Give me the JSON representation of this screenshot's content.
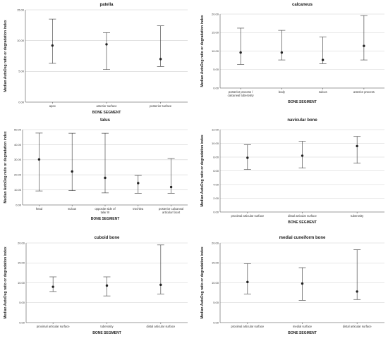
{
  "chart_data": [
    {
      "type": "errorbar",
      "title": "patella",
      "xlabel": "BONE SEGMENT",
      "ylabel": "Median AutoDeg ratio or degradation index",
      "ylim": [
        0,
        15
      ],
      "yticks": [
        "0.00",
        "5.00",
        "10.00",
        "15.00"
      ],
      "ytick_values": [
        0,
        5,
        10,
        15
      ],
      "grid": true,
      "categories": [
        "apex",
        "anterior surface",
        "posterior surface"
      ],
      "median": [
        9.2,
        9.4,
        7.0
      ],
      "lower": [
        6.3,
        5.3,
        5.8
      ],
      "upper": [
        13.5,
        11.3,
        12.4
      ]
    },
    {
      "type": "errorbar",
      "title": "calcaneus",
      "xlabel": "BONE SEGMENT",
      "ylabel": "Median AutoDeg ratio or degradation index",
      "ylim": [
        0,
        20
      ],
      "yticks": [
        "0.00",
        "5.00",
        "10.00",
        "15.00",
        "20.00"
      ],
      "ytick_values": [
        0,
        5,
        10,
        15,
        20
      ],
      "grid": true,
      "categories": [
        "posterior process / calcaneal tuberosity",
        "body",
        "sulcus",
        "anterior process"
      ],
      "median": [
        9.6,
        9.6,
        7.6,
        11.4
      ],
      "lower": [
        6.4,
        7.6,
        6.6,
        7.6
      ],
      "upper": [
        16.2,
        15.6,
        13.8,
        19.6
      ]
    },
    {
      "type": "errorbar",
      "title": "talus",
      "xlabel": "BONE SEGMENT",
      "ylabel": "Median AutoDeg ratio or degradation index",
      "ylim": [
        0,
        50
      ],
      "yticks": [
        "0.00",
        "10.00",
        "20.00",
        "30.00",
        "40.00",
        "50.00"
      ],
      "ytick_values": [
        0,
        10,
        20,
        30,
        40,
        50
      ],
      "grid": true,
      "categories": [
        "head",
        "sulcus",
        "opposite side of talar III",
        "trochlea",
        "posterior calcaneal articular facet"
      ],
      "median": [
        30.2,
        22.2,
        18.0,
        14.5,
        11.9
      ],
      "lower": [
        9.3,
        9.5,
        8.0,
        7.8,
        7.8
      ],
      "upper": [
        47.7,
        47.6,
        47.6,
        19.6,
        30.8
      ]
    },
    {
      "type": "errorbar",
      "title": "navicular bone",
      "xlabel": "BONE SEGMENT",
      "ylabel": "Median AutoDeg ratio or degradation index",
      "ylim": [
        0,
        12
      ],
      "yticks": [
        "0.00",
        "2.00",
        "4.00",
        "6.00",
        "8.00",
        "10.00",
        "12.00"
      ],
      "ytick_values": [
        0,
        2,
        4,
        6,
        8,
        10,
        12
      ],
      "grid": true,
      "categories": [
        "proximal articular surface",
        "distal articular surface",
        "tuberosity"
      ],
      "median": [
        7.9,
        8.2,
        9.6
      ],
      "lower": [
        6.2,
        6.4,
        7.1
      ],
      "upper": [
        9.8,
        10.3,
        11.0
      ]
    },
    {
      "type": "errorbar",
      "title": "cuboid bone",
      "xlabel": "BONE SEGMENT",
      "ylabel": "Median AutoDeg ratio or degradation index",
      "ylim": [
        0,
        20
      ],
      "yticks": [
        "0.00",
        "5.00",
        "10.00",
        "15.00",
        "20.00"
      ],
      "ytick_values": [
        0,
        5,
        10,
        15,
        20
      ],
      "grid": true,
      "categories": [
        "proximal articular surface",
        "tuberosity",
        "distal articular surface"
      ],
      "median": [
        9.0,
        9.3,
        9.5
      ],
      "lower": [
        7.8,
        6.7,
        7.2
      ],
      "upper": [
        11.5,
        11.5,
        19.5
      ]
    },
    {
      "type": "errorbar",
      "title": "medial cuneiform bone",
      "xlabel": "BONE SEGMENT",
      "ylabel": "Median AutoDeg ratio or degradation index",
      "ylim": [
        0,
        20
      ],
      "yticks": [
        "0.00",
        "5.00",
        "10.00",
        "15.00",
        "20.00"
      ],
      "ytick_values": [
        0,
        5,
        10,
        15,
        20
      ],
      "grid": true,
      "categories": [
        "proximal articular surface",
        "medial surface",
        "distal articular surface"
      ],
      "median": [
        10.2,
        9.8,
        7.8
      ],
      "lower": [
        7.2,
        5.6,
        5.8
      ],
      "upper": [
        14.8,
        13.8,
        18.3
      ]
    }
  ]
}
